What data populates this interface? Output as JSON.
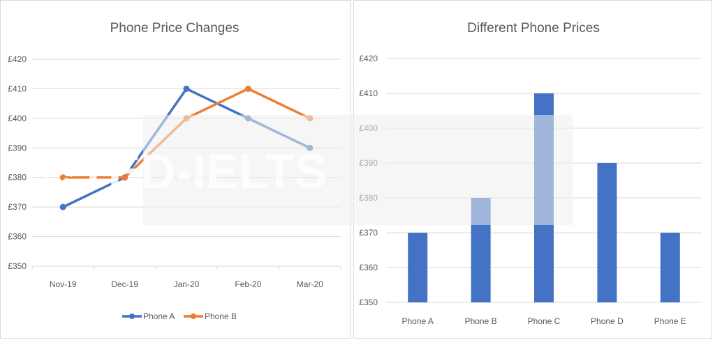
{
  "watermark": "TED-IELTS",
  "chart_data": [
    {
      "type": "line",
      "title": "Phone Price Changes",
      "categories": [
        "Nov-19",
        "Dec-19",
        "Jan-20",
        "Feb-20",
        "Mar-20"
      ],
      "yticks": [
        "£350",
        "£360",
        "£370",
        "£380",
        "£390",
        "£400",
        "£410",
        "£420"
      ],
      "ylim": [
        350,
        420
      ],
      "grid": true,
      "legend": "bottom",
      "series": [
        {
          "name": "Phone A",
          "values": [
            370,
            380,
            410,
            400,
            390
          ],
          "color": "#4472c4"
        },
        {
          "name": "Phone B",
          "values": [
            380,
            380,
            400,
            410,
            400
          ],
          "color": "#ed7d31"
        }
      ]
    },
    {
      "type": "bar",
      "title": "Different Phone Prices",
      "categories": [
        "Phone A",
        "Phone B",
        "Phone C",
        "Phone D",
        "Phone E"
      ],
      "values": [
        370,
        380,
        410,
        390,
        370
      ],
      "yticks": [
        "£350",
        "£360",
        "£370",
        "£380",
        "£390",
        "£400",
        "£410",
        "£420"
      ],
      "ylim": [
        350,
        420
      ],
      "grid": true,
      "color": "#4472c4"
    }
  ]
}
